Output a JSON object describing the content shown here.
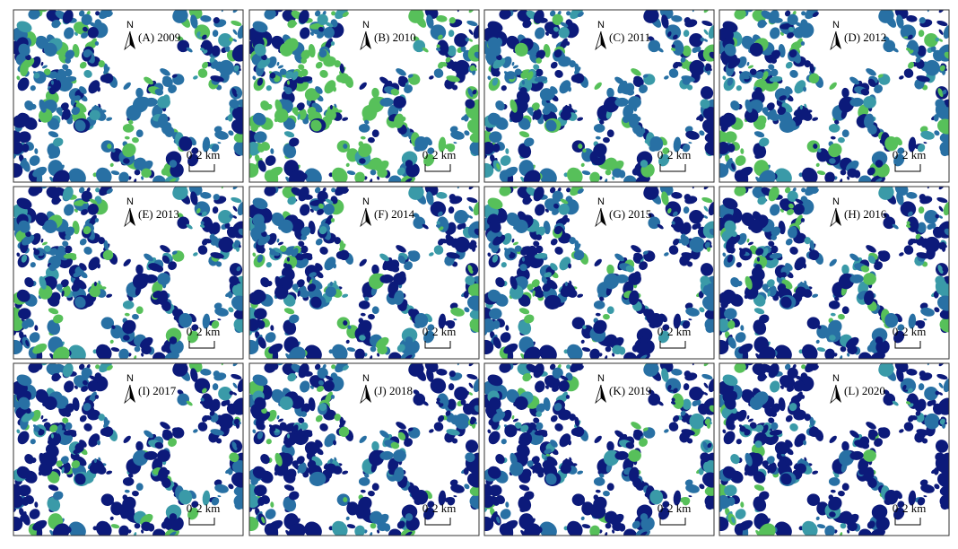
{
  "panels": [
    {
      "label": "(A) 2009"
    },
    {
      "label": "(B) 2010"
    },
    {
      "label": "(C) 2011"
    },
    {
      "label": "(D) 2012"
    },
    {
      "label": "(E) 2013"
    },
    {
      "label": "(F) 2014"
    },
    {
      "label": "(G) 2015"
    },
    {
      "label": "(H) 2016"
    },
    {
      "label": "(I) 2017"
    },
    {
      "label": "(J) 2018"
    },
    {
      "label": "(K) 2019"
    },
    {
      "label": "(L) 2020"
    }
  ],
  "north_label": "N",
  "scale_labels": [
    "0",
    "2 km"
  ]
}
